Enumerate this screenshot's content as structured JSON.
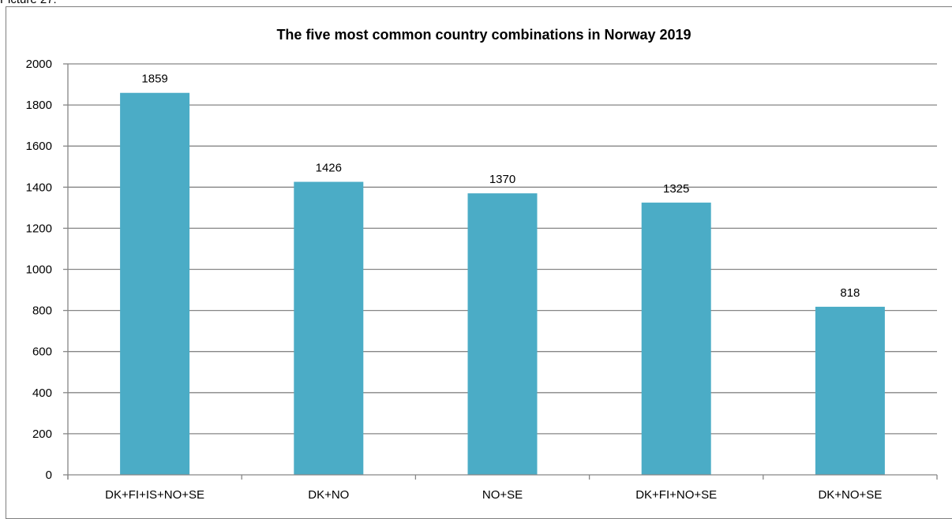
{
  "caption": "Picture 27:",
  "chart_data": {
    "type": "bar",
    "title": "The five most common country combinations in Norway 2019",
    "categories": [
      "DK+FI+IS+NO+SE",
      "DK+NO",
      "NO+SE",
      "DK+FI+NO+SE",
      "DK+NO+SE"
    ],
    "values": [
      1859,
      1426,
      1370,
      1325,
      818
    ],
    "data_labels": [
      "1859",
      "1426",
      "1370",
      "1325",
      "818"
    ],
    "ylim": [
      0,
      2000
    ],
    "yticks": [
      0,
      200,
      400,
      600,
      800,
      1000,
      1200,
      1400,
      1600,
      1800,
      2000
    ],
    "xlabel": "",
    "ylabel": "",
    "grid": true,
    "legend": "none",
    "bar_color": "#4bacc6",
    "grid_color": "#868686"
  }
}
